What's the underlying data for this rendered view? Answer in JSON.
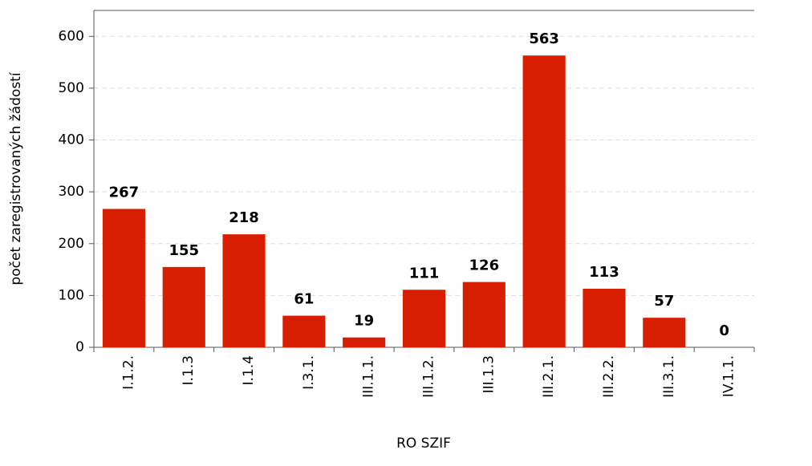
{
  "chart_data": {
    "type": "bar",
    "x_label": "RO SZIF",
    "y_label": "počet zaregistrovaných žádostí",
    "categories": [
      "I.1.2.",
      "I.1.3",
      "I.1.4",
      "I.3.1.",
      "III.1.1.",
      "III.1.2.",
      "III.1.3",
      "III.2.1.",
      "III.2.2.",
      "III.3.1.",
      "IV.1.1."
    ],
    "values": [
      267,
      155,
      218,
      61,
      19,
      111,
      126,
      563,
      113,
      57,
      0
    ],
    "color": "#d81e00",
    "ylim": [
      0,
      650
    ],
    "yticks": [
      0,
      100,
      200,
      300,
      400,
      500,
      600
    ],
    "grid": true
  }
}
